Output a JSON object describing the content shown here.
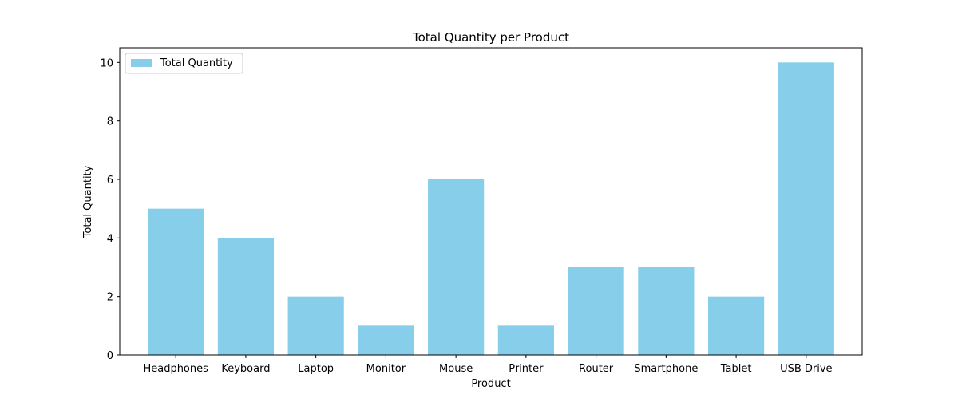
{
  "chart_data": {
    "type": "bar",
    "title": "Total Quantity per Product",
    "xlabel": "Product",
    "ylabel": "Total Quantity",
    "categories": [
      "Headphones",
      "Keyboard",
      "Laptop",
      "Monitor",
      "Mouse",
      "Printer",
      "Router",
      "Smartphone",
      "Tablet",
      "USB Drive"
    ],
    "series": [
      {
        "name": "Total Quantity",
        "values": [
          5,
          4,
          2,
          1,
          6,
          1,
          3,
          3,
          2,
          10
        ],
        "color": "#87ceeb"
      }
    ],
    "ylim": [
      0,
      10.5
    ],
    "yticks": [
      0,
      2,
      4,
      6,
      8,
      10
    ],
    "grid": false,
    "legend_position": "top-left"
  }
}
